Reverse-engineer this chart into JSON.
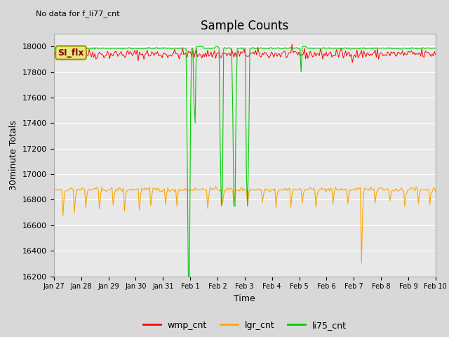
{
  "title": "Sample Counts",
  "subtitle": "No data for f_li77_cnt",
  "xlabel": "Time",
  "ylabel": "30minute Totals",
  "ylim": [
    16200,
    18100
  ],
  "background_color": "#d8d8d8",
  "plot_bg_color": "#e8e8e8",
  "grid_color": "white",
  "annotation_text": "SI_flx",
  "annotation_bg": "#e8e880",
  "annotation_edge": "#a09000",
  "annotation_text_color": "#880000",
  "wmp_color": "#ff0000",
  "lgr_color": "#ffa500",
  "li75_color": "#00cc00",
  "legend_labels": [
    "wmp_cnt",
    "lgr_cnt",
    "li75_cnt"
  ],
  "x_tick_labels": [
    "Jan 27",
    "Jan 28",
    "Jan 29",
    "Jan 30",
    "Jan 31",
    "Feb 1",
    "Feb 2",
    "Feb 3",
    "Feb 4",
    "Feb 5",
    "Feb 6",
    "Feb 7",
    "Feb 8",
    "Feb 9",
    "Feb 10"
  ],
  "yticks": [
    16200,
    16400,
    16600,
    16800,
    17000,
    17200,
    17400,
    17600,
    17800,
    18000
  ],
  "wmp_base": 17940,
  "wmp_noise": 20,
  "lgr_base": 16880,
  "lgr_noise": 8,
  "li75_base": 17985,
  "li75_noise": 3,
  "num_points": 336
}
